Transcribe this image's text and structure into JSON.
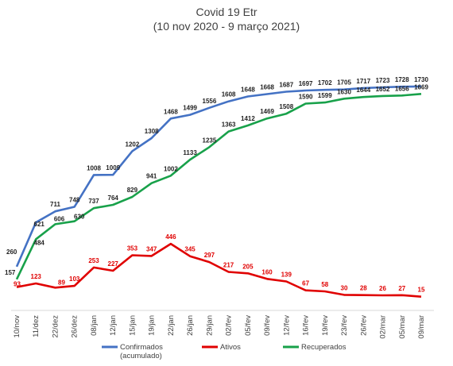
{
  "chart_data": {
    "type": "line",
    "title": "Covid 19 Etr",
    "subtitle": "(10 nov 2020 - 9 março 2021)",
    "categories": [
      "10/nov",
      "11/dez",
      "22/dez",
      "26/dez",
      "08/jan",
      "12/jan",
      "15/jan",
      "19/jan",
      "22/jan",
      "26/jan",
      "29/jan",
      "02/fev",
      "05/fev",
      "09/fev",
      "12/fev",
      "16/fev",
      "19/fev",
      "23/fev",
      "26/fev",
      "02/mar",
      "05/mar",
      "09/mar"
    ],
    "series": [
      {
        "name": "Confirmados",
        "name_line2": "(acumulado)",
        "color": "#4472C4",
        "values": [
          260,
          621,
          711,
          748,
          1008,
          1009,
          1202,
          1308,
          1468,
          1499,
          1556,
          1608,
          1648,
          1668,
          1687,
          1697,
          1702,
          1705,
          1717,
          1723,
          1728,
          1730
        ]
      },
      {
        "name": "Ativos",
        "color": "#E00000",
        "values": [
          93,
          123,
          89,
          103,
          253,
          227,
          353,
          347,
          446,
          345,
          297,
          217,
          205,
          160,
          139,
          67,
          58,
          30,
          28,
          26,
          27,
          15
        ]
      },
      {
        "name": "Recuperados",
        "color": "#18A14A",
        "values": [
          157,
          484,
          606,
          630,
          737,
          764,
          829,
          941,
          1002,
          1133,
          1235,
          1363,
          1412,
          1469,
          1508,
          1590,
          1599,
          1630,
          1644,
          1652,
          1656,
          1669
        ]
      }
    ],
    "grid": false,
    "legend_position": "bottom"
  }
}
